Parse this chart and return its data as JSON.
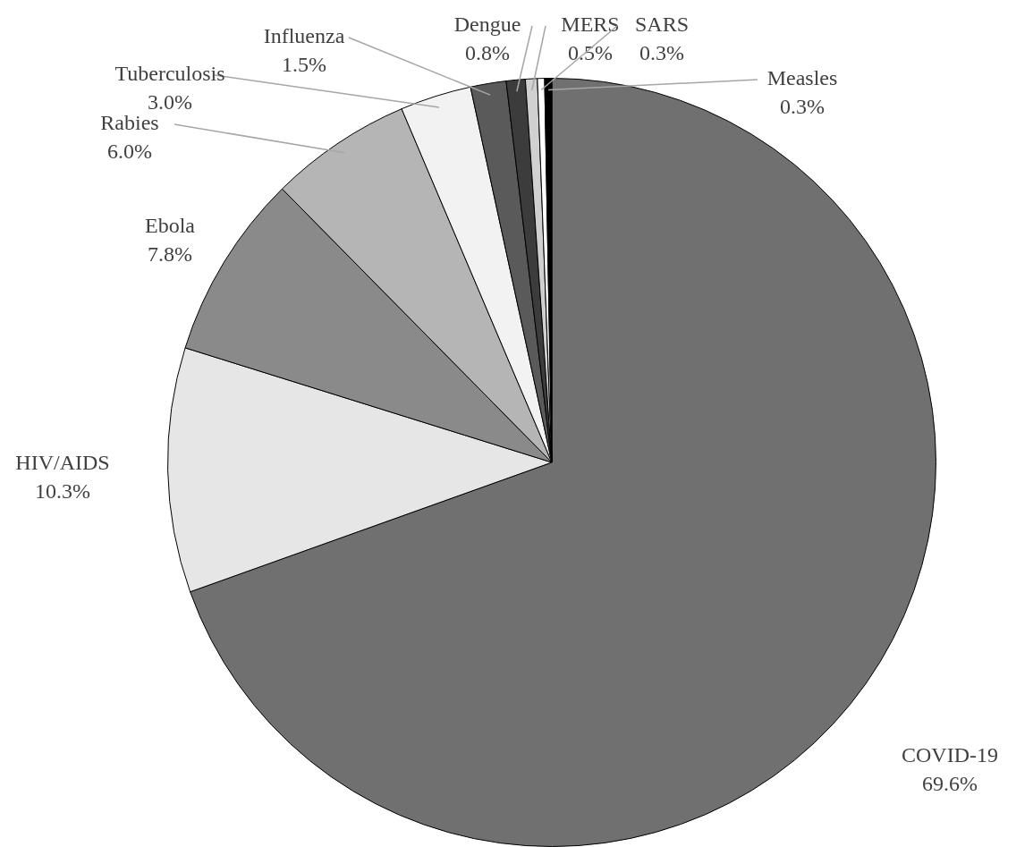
{
  "chart_data": {
    "type": "pie",
    "categories": [
      "COVID-19",
      "HIV/AIDS",
      "Ebola",
      "Rabies",
      "Tuberculosis",
      "Influenza",
      "Dengue",
      "MERS",
      "SARS",
      "Measles"
    ],
    "values": [
      69.6,
      10.3,
      7.8,
      6.0,
      3.0,
      1.5,
      0.8,
      0.5,
      0.3,
      0.3
    ],
    "value_labels": [
      "69.6%",
      "10.3%",
      "7.8%",
      "6.0%",
      "3.0%",
      "1.5%",
      "0.8%",
      "0.5%",
      "0.3%",
      "0.3%"
    ],
    "colors": [
      "#707070",
      "#e6e6e6",
      "#8a8a8a",
      "#b5b5b5",
      "#f2f2f2",
      "#5a5a5a",
      "#3c3c3c",
      "#d0d0d0",
      "#ffffff",
      "#000000"
    ]
  }
}
